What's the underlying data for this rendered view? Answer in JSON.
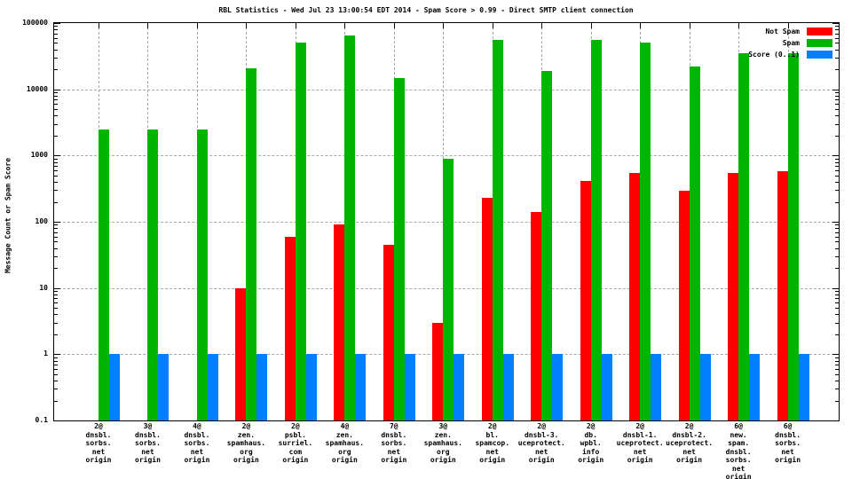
{
  "chart_data": {
    "type": "bar",
    "title": "RBL Statistics - Wed Jul 23 13:00:54 EDT 2014 - Spam Score > 0.99 - Direct SMTP client connection",
    "ylabel": "Message Count or Spam Score",
    "xlabel": "",
    "yscale": "log",
    "ylim": [
      0.1,
      100000
    ],
    "grid": true,
    "legend_position": "top-right-inside",
    "colors": {
      "grid": "#a8a8a8",
      "axis": "#000000",
      "background": "#ffffff"
    },
    "yticks": [
      {
        "label": "100000",
        "value": 100000
      },
      {
        "label": "10000",
        "value": 10000
      },
      {
        "label": "1000",
        "value": 1000
      },
      {
        "label": "100",
        "value": 100
      },
      {
        "label": "10",
        "value": 10
      },
      {
        "label": "1",
        "value": 1
      },
      {
        "label": "0.1",
        "value": 0.1
      }
    ],
    "categories": [
      [
        "2@",
        "dnsbl.",
        "sorbs.",
        "net",
        "origin"
      ],
      [
        "3@",
        "dnsbl.",
        "sorbs.",
        "net",
        "origin"
      ],
      [
        "4@",
        "dnsbl.",
        "sorbs.",
        "net",
        "origin"
      ],
      [
        "2@",
        "zen.",
        "spamhaus.",
        "org",
        "origin"
      ],
      [
        "2@",
        "psbl.",
        "surriel.",
        "com",
        "origin"
      ],
      [
        "4@",
        "zen.",
        "spamhaus.",
        "org",
        "origin"
      ],
      [
        "7@",
        "dnsbl.",
        "sorbs.",
        "net",
        "origin"
      ],
      [
        "3@",
        "zen.",
        "spamhaus.",
        "org",
        "origin"
      ],
      [
        "2@",
        "bl.",
        "spamcop.",
        "net",
        "origin"
      ],
      [
        "2@",
        "dnsbl-3.",
        "uceprotect.",
        "net",
        "origin"
      ],
      [
        "2@",
        "db.",
        "wpbl.",
        "info",
        "origin"
      ],
      [
        "2@",
        "dnsbl-1.",
        "uceprotect.",
        "net",
        "origin"
      ],
      [
        "2@",
        "dnsbl-2.",
        "uceprotect.",
        "net",
        "origin"
      ],
      [
        "6@",
        "new.",
        "spam.",
        "dnsbl.",
        "sorbs.",
        "net",
        "origin"
      ],
      [
        "6@",
        "dnsbl.",
        "sorbs.",
        "net",
        "origin"
      ]
    ],
    "series": [
      {
        "name": "Not Spam",
        "color": "#ff0000",
        "values": [
          0,
          0,
          0,
          10,
          60,
          90,
          45,
          3,
          230,
          140,
          410,
          540,
          290,
          540,
          580
        ]
      },
      {
        "name": "Spam",
        "color": "#00b400",
        "values": [
          2500,
          2500,
          2500,
          21000,
          50000,
          65000,
          15000,
          900,
          55000,
          19000,
          55000,
          50000,
          22000,
          35000,
          35000
        ]
      },
      {
        "name": "Score (0..1)",
        "color": "#0080ff",
        "values": [
          1,
          1,
          1,
          1,
          1,
          1,
          1,
          1,
          1,
          1,
          1,
          1,
          1,
          1,
          1
        ]
      }
    ]
  }
}
